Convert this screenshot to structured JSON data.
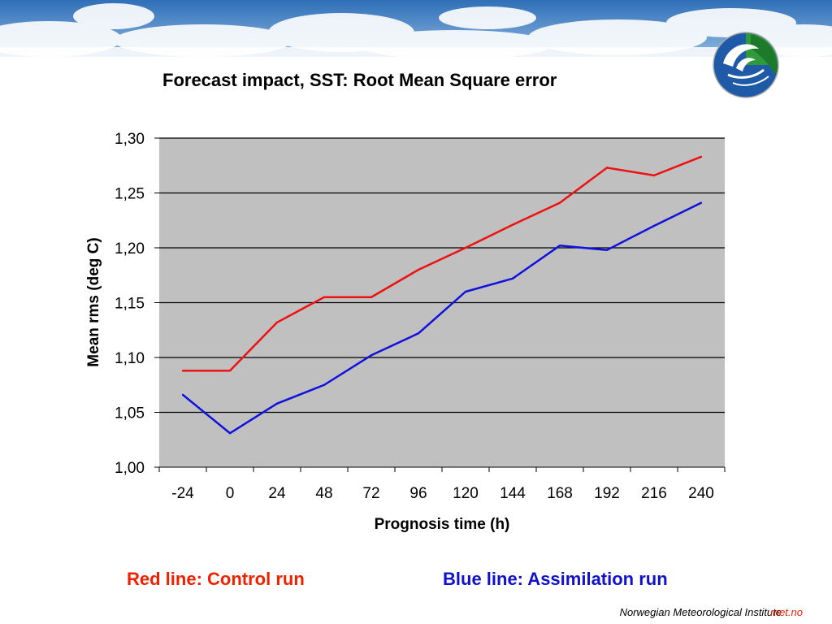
{
  "slide": {
    "title": "Forecast impact, SST: Root Mean Square error",
    "legend_red": "Red line: Control run",
    "legend_blue": "Blue line: Assimilation run",
    "footer_org": "Norwegian Meteorological Institute",
    "footer_brand": "met.no"
  },
  "chart_data": {
    "type": "line",
    "title": "",
    "xlabel": "Prognosis time (h)",
    "ylabel": "Mean rms (deg C)",
    "categories": [
      "-24",
      "0",
      "24",
      "48",
      "72",
      "96",
      "120",
      "144",
      "168",
      "192",
      "216",
      "240"
    ],
    "yticks": [
      "1,00",
      "1,05",
      "1,10",
      "1,15",
      "1,20",
      "1,25",
      "1,30"
    ],
    "ylim": [
      1.0,
      1.3
    ],
    "grid": true,
    "plot_background": "#c0c0c0",
    "series": [
      {
        "color": "#ee1111",
        "values": [
          1.088,
          1.088,
          1.132,
          1.155,
          1.155,
          1.18,
          1.2,
          1.221,
          1.241,
          1.273,
          1.266,
          1.283
        ]
      },
      {
        "color": "#1111dd",
        "values": [
          1.066,
          1.031,
          1.058,
          1.075,
          1.102,
          1.122,
          1.16,
          1.172,
          1.202,
          1.198,
          1.22,
          1.241
        ]
      }
    ]
  }
}
